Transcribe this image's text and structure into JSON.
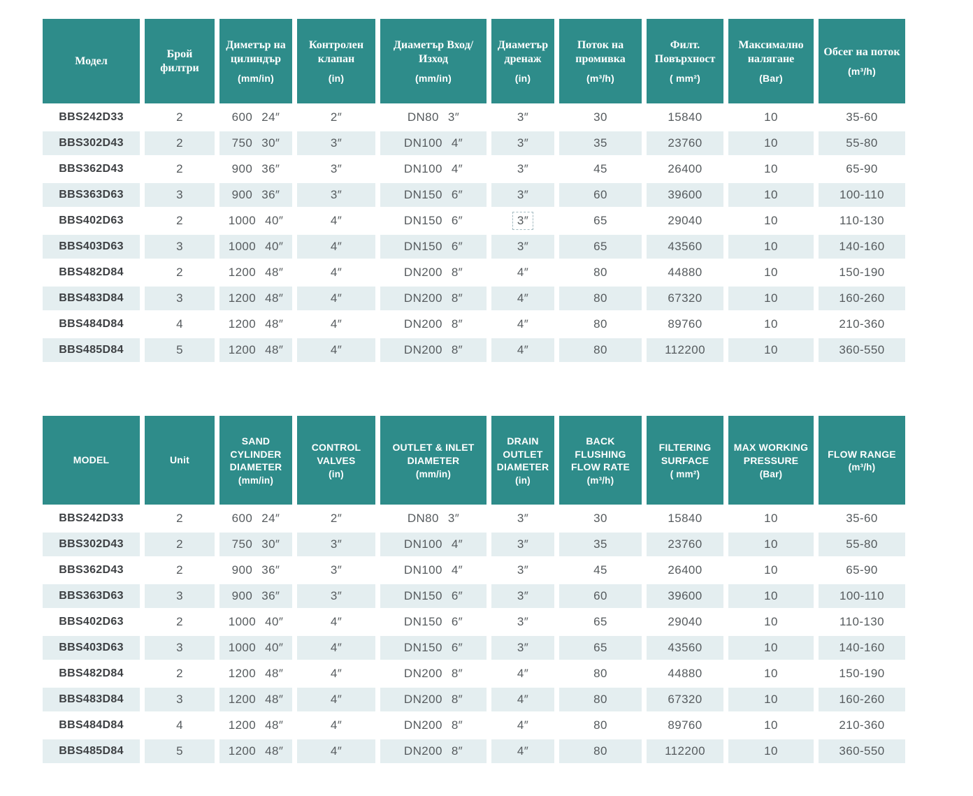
{
  "colors": {
    "header_bg": "#2E8C8A",
    "header_text": "#FFFFFF",
    "stripe_bg": "#E4EEF0",
    "model_text": "#3D4043",
    "data_text": "#565B5E",
    "selection_border": "#A4BBC1"
  },
  "tables": [
    {
      "language": "Bulgarian",
      "headers": [
        {
          "label": "Модел",
          "unit": ""
        },
        {
          "label": "Брой филтри",
          "unit": ""
        },
        {
          "label": "Диметър на цилиндър",
          "unit": "(mm/in)"
        },
        {
          "label": "Контролен клапан",
          "unit": "(in)"
        },
        {
          "label": "Диаметър Вход/Изход",
          "unit": "(mm/in)"
        },
        {
          "label": "Диаметър дренаж",
          "unit": "(in)"
        },
        {
          "label": "Поток на промивка",
          "unit": "(m³/h)"
        },
        {
          "label": "Филт. Повърхност",
          "unit": "( mm²)"
        },
        {
          "label": "Максимално налягане",
          "unit": "(Bar)"
        },
        {
          "label": "Обсег на поток",
          "unit": "(m³/h)"
        }
      ],
      "rows": [
        {
          "model": "BBS242D33",
          "filters": "2",
          "cyl_mm": "600",
          "cyl_in": "24″",
          "valve": "2″",
          "io_dn": "DN80",
          "io_in": "3″",
          "drain": "3″",
          "flush": "30",
          "surface": "15840",
          "pressure": "10",
          "range": "35-60"
        },
        {
          "model": "BBS302D43",
          "filters": "2",
          "cyl_mm": "750",
          "cyl_in": "30″",
          "valve": "3″",
          "io_dn": "DN100",
          "io_in": "4″",
          "drain": "3″",
          "flush": "35",
          "surface": "23760",
          "pressure": "10",
          "range": "55-80"
        },
        {
          "model": "BBS362D43",
          "filters": "2",
          "cyl_mm": "900",
          "cyl_in": "36″",
          "valve": "3″",
          "io_dn": "DN100",
          "io_in": "4″",
          "drain": "3″",
          "flush": "45",
          "surface": "26400",
          "pressure": "10",
          "range": "65-90"
        },
        {
          "model": "BBS363D63",
          "filters": "3",
          "cyl_mm": "900",
          "cyl_in": "36″",
          "valve": "3″",
          "io_dn": "DN150",
          "io_in": "6″",
          "drain": "3″",
          "flush": "60",
          "surface": "39600",
          "pressure": "10",
          "range": "100-110"
        },
        {
          "model": "BBS402D63",
          "filters": "2",
          "cyl_mm": "1000",
          "cyl_in": "40″",
          "valve": "4″",
          "io_dn": "DN150",
          "io_in": "6″",
          "drain": "3″",
          "drain_selected": true,
          "flush": "65",
          "surface": "29040",
          "pressure": "10",
          "range": "110-130"
        },
        {
          "model": "BBS403D63",
          "filters": "3",
          "cyl_mm": "1000",
          "cyl_in": "40″",
          "valve": "4″",
          "io_dn": "DN150",
          "io_in": "6″",
          "drain": "3″",
          "flush": "65",
          "surface": "43560",
          "pressure": "10",
          "range": "140-160"
        },
        {
          "model": "BBS482D84",
          "filters": "2",
          "cyl_mm": "1200",
          "cyl_in": "48″",
          "valve": "4″",
          "io_dn": "DN200",
          "io_in": "8″",
          "drain": "4″",
          "flush": "80",
          "surface": "44880",
          "pressure": "10",
          "range": "150-190"
        },
        {
          "model": "BBS483D84",
          "filters": "3",
          "cyl_mm": "1200",
          "cyl_in": "48″",
          "valve": "4″",
          "io_dn": "DN200",
          "io_in": "8″",
          "drain": "4″",
          "flush": "80",
          "surface": "67320",
          "pressure": "10",
          "range": "160-260"
        },
        {
          "model": "BBS484D84",
          "filters": "4",
          "cyl_mm": "1200",
          "cyl_in": "48″",
          "valve": "4″",
          "io_dn": "DN200",
          "io_in": "8″",
          "drain": "4″",
          "flush": "80",
          "surface": "89760",
          "pressure": "10",
          "range": "210-360"
        },
        {
          "model": "BBS485D84",
          "filters": "5",
          "cyl_mm": "1200",
          "cyl_in": "48″",
          "valve": "4″",
          "io_dn": "DN200",
          "io_in": "8″",
          "drain": "4″",
          "flush": "80",
          "surface": "112200",
          "pressure": "10",
          "range": "360-550"
        }
      ]
    },
    {
      "language": "English",
      "headers": [
        {
          "label": "MODEL",
          "unit": ""
        },
        {
          "label": "Unit",
          "unit": ""
        },
        {
          "label": "SAND CYLINDER DIAMETER",
          "unit": "(mm/in)"
        },
        {
          "label": "CONTROL VALVES",
          "unit": "(in)"
        },
        {
          "label": "OUTLET & INLET DIAMETER",
          "unit": "(mm/in)"
        },
        {
          "label": "DRAIN OUTLET DIAMETER",
          "unit": "(in)"
        },
        {
          "label": "BACK FLUSHING FLOW RATE",
          "unit": "(m³/h)"
        },
        {
          "label": "FILTERING SURFACE",
          "unit": "( mm²)"
        },
        {
          "label": "MAX WORKING PRESSURE",
          "unit": "(Bar)"
        },
        {
          "label": "FLOW RANGE",
          "unit": "(m³/h)"
        }
      ],
      "rows": [
        {
          "model": "BBS242D33",
          "filters": "2",
          "cyl_mm": "600",
          "cyl_in": "24″",
          "valve": "2″",
          "io_dn": "DN80",
          "io_in": "3″",
          "drain": "3″",
          "flush": "30",
          "surface": "15840",
          "pressure": "10",
          "range": "35-60"
        },
        {
          "model": "BBS302D43",
          "filters": "2",
          "cyl_mm": "750",
          "cyl_in": "30″",
          "valve": "3″",
          "io_dn": "DN100",
          "io_in": "4″",
          "drain": "3″",
          "flush": "35",
          "surface": "23760",
          "pressure": "10",
          "range": "55-80"
        },
        {
          "model": "BBS362D43",
          "filters": "2",
          "cyl_mm": "900",
          "cyl_in": "36″",
          "valve": "3″",
          "io_dn": "DN100",
          "io_in": "4″",
          "drain": "3″",
          "flush": "45",
          "surface": "26400",
          "pressure": "10",
          "range": "65-90"
        },
        {
          "model": "BBS363D63",
          "filters": "3",
          "cyl_mm": "900",
          "cyl_in": "36″",
          "valve": "3″",
          "io_dn": "DN150",
          "io_in": "6″",
          "drain": "3″",
          "flush": "60",
          "surface": "39600",
          "pressure": "10",
          "range": "100-110"
        },
        {
          "model": "BBS402D63",
          "filters": "2",
          "cyl_mm": "1000",
          "cyl_in": "40″",
          "valve": "4″",
          "io_dn": "DN150",
          "io_in": "6″",
          "drain": "3″",
          "flush": "65",
          "surface": "29040",
          "pressure": "10",
          "range": "110-130"
        },
        {
          "model": "BBS403D63",
          "filters": "3",
          "cyl_mm": "1000",
          "cyl_in": "40″",
          "valve": "4″",
          "io_dn": "DN150",
          "io_in": "6″",
          "drain": "3″",
          "flush": "65",
          "surface": "43560",
          "pressure": "10",
          "range": "140-160"
        },
        {
          "model": "BBS482D84",
          "filters": "2",
          "cyl_mm": "1200",
          "cyl_in": "48″",
          "valve": "4″",
          "io_dn": "DN200",
          "io_in": "8″",
          "drain": "4″",
          "flush": "80",
          "surface": "44880",
          "pressure": "10",
          "range": "150-190"
        },
        {
          "model": "BBS483D84",
          "filters": "3",
          "cyl_mm": "1200",
          "cyl_in": "48″",
          "valve": "4″",
          "io_dn": "DN200",
          "io_in": "8″",
          "drain": "4″",
          "flush": "80",
          "surface": "67320",
          "pressure": "10",
          "range": "160-260"
        },
        {
          "model": "BBS484D84",
          "filters": "4",
          "cyl_mm": "1200",
          "cyl_in": "48″",
          "valve": "4″",
          "io_dn": "DN200",
          "io_in": "8″",
          "drain": "4″",
          "flush": "80",
          "surface": "89760",
          "pressure": "10",
          "range": "210-360"
        },
        {
          "model": "BBS485D84",
          "filters": "5",
          "cyl_mm": "1200",
          "cyl_in": "48″",
          "valve": "4″",
          "io_dn": "DN200",
          "io_in": "8″",
          "drain": "4″",
          "flush": "80",
          "surface": "112200",
          "pressure": "10",
          "range": "360-550"
        }
      ]
    }
  ]
}
